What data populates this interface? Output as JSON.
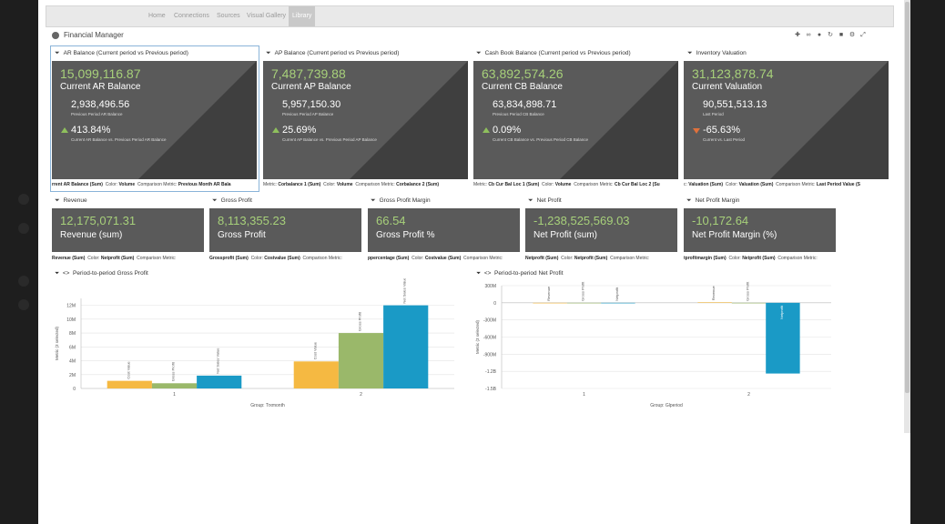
{
  "nav": {
    "items": [
      "Home",
      "Connections",
      "Sources",
      "Visual Gallery",
      "Library"
    ],
    "active_index": 4
  },
  "page_title": "Financial Manager",
  "toolbar_icons": [
    "add-widget-icon",
    "link-icon",
    "download-icon",
    "refresh-icon",
    "delete-icon",
    "settings-icon",
    "fullscreen-icon"
  ],
  "top_kpis": [
    {
      "header": "AR Balance (Current period vs Previous period)",
      "value": "15,099,116.87",
      "label": "Current AR Balance",
      "prev_value": "2,938,496.56",
      "prev_label": "Previous Period AR Balance",
      "pct": "413.84%",
      "pct_label": "Current AR Balance vs. Previous Period AR Balance",
      "trend": "up",
      "footer": [
        {
          "k": "",
          "v": "rrent AR Balance (Sum)"
        },
        {
          "k": "Color:",
          "v": "Volume"
        },
        {
          "k": "Comparison Metric:",
          "v": "Previous Month AR Bala"
        }
      ]
    },
    {
      "header": "AP Balance (Current period vs Previous period)",
      "value": "7,487,739.88",
      "label": "Current AP Balance",
      "prev_value": "5,957,150.30",
      "prev_label": "Previous Period AP Balance",
      "pct": "25.69%",
      "pct_label": "Current AP Balance vs. Previous Period AP Balance",
      "trend": "up",
      "footer": [
        {
          "k": "Metric:",
          "v": "Corbalance 1 (Sum)"
        },
        {
          "k": "Color:",
          "v": "Volume"
        },
        {
          "k": "Comparison Metric:",
          "v": "Corbalance 2 (Sum)"
        }
      ]
    },
    {
      "header": "Cash Book Balance (Current period vs Previous period)",
      "value": "63,892,574.26",
      "label": "Current CB Balance",
      "prev_value": "63,834,898.71",
      "prev_label": "Previous Period CB Balance",
      "pct": "0.09%",
      "pct_label": "Current CB Balance vs. Previous Period CB Balance",
      "trend": "up",
      "footer": [
        {
          "k": "Metric:",
          "v": "Cb Cur Bal Loc 1 (Sum)"
        },
        {
          "k": "Color:",
          "v": "Volume"
        },
        {
          "k": "Comparison Metric:",
          "v": "Cb Cur Bal Loc 2 (Su"
        }
      ]
    },
    {
      "header": "Inventory Valuation",
      "value": "31,123,878.74",
      "label": "Current Valuation",
      "prev_value": "90,551,513.13",
      "prev_label": "Last Period",
      "pct": "-65.63%",
      "pct_label": "Current vs. Last Period",
      "trend": "down",
      "footer": [
        {
          "k": "c:",
          "v": "Valuation (Sum)"
        },
        {
          "k": "Color:",
          "v": "Valuation (Sum)"
        },
        {
          "k": "Comparison Metric:",
          "v": "Last Period Value (S"
        }
      ]
    }
  ],
  "second_kpis": [
    {
      "header": "Revenue",
      "value": "12,175,071.31",
      "label": "Revenue (sum)",
      "footer": [
        {
          "k": "",
          "v": "Revenue (Sum)"
        },
        {
          "k": "Color:",
          "v": "Netprofit (Sum)"
        },
        {
          "k": "Comparison Metric:",
          "v": ""
        }
      ]
    },
    {
      "header": "Gross Profit",
      "value": "8,113,355.23",
      "label": "Gross Profit",
      "footer": [
        {
          "k": "",
          "v": "Grossprofit (Sum)"
        },
        {
          "k": "Color:",
          "v": "Costvalue (Sum)"
        },
        {
          "k": "Comparison Metric:",
          "v": ""
        }
      ]
    },
    {
      "header": "Gross Profit Margin",
      "value": "66.54",
      "label": "Gross Profit %",
      "footer": [
        {
          "k": "",
          "v": "ppercentage (Sum)"
        },
        {
          "k": "Color:",
          "v": "Costvalue (Sum)"
        },
        {
          "k": "Comparison Metric:",
          "v": ""
        }
      ]
    },
    {
      "header": "Net Profit",
      "value": "-1,238,525,569.03",
      "label": "Net Profit (sum)",
      "footer": [
        {
          "k": "",
          "v": "Netprofit (Sum)"
        },
        {
          "k": "Color:",
          "v": "Netprofit (Sum)"
        },
        {
          "k": "Comparison Metric:",
          "v": ""
        }
      ]
    },
    {
      "header": "Net Profit Margin",
      "value": "-10,172.64",
      "label": "Net Profit Margin (%)",
      "footer": [
        {
          "k": "",
          "v": "tprofitmargin (Sum)"
        },
        {
          "k": "Color:",
          "v": "Netprofit (Sum)"
        },
        {
          "k": "Comparison Metric:",
          "v": ""
        }
      ]
    }
  ],
  "colors": {
    "kpi_bg": "#5a5a5a",
    "value_green": "#a7d07a",
    "bar_yellow": "#f5b942",
    "bar_green": "#9ab86a",
    "bar_blue": "#1a9ac6"
  },
  "chart_data": [
    {
      "type": "bar",
      "title": "Period-to-period Gross Profit",
      "xlabel": "Group: Trxmonth",
      "ylabel": "Metric (3 selected)",
      "categories": [
        "1",
        "2"
      ],
      "yticks": [
        "0",
        "2M",
        "4M",
        "6M",
        "8M",
        "10M",
        "12M"
      ],
      "ylim": [
        0,
        13000000
      ],
      "grid": true,
      "series": [
        {
          "name": "Cost Value",
          "values": [
            1100000,
            3900000
          ],
          "color": "#f5b942"
        },
        {
          "name": "Gross Profit",
          "values": [
            750000,
            8000000
          ],
          "color": "#9ab86a"
        },
        {
          "name": "Net Sales Value",
          "values": [
            1850000,
            12000000
          ],
          "color": "#1a9ac6"
        }
      ]
    },
    {
      "type": "bar",
      "title": "Period-to-period Net Profit",
      "xlabel": "Group: Glperiod",
      "ylabel": "Metric (3 selected)",
      "categories": [
        "1",
        "2"
      ],
      "yticks": [
        "300M",
        "0",
        "-300M",
        "-600M",
        "-900M",
        "-1.2B",
        "-1.5B"
      ],
      "ylim": [
        -1500000000,
        300000000
      ],
      "grid": true,
      "series": [
        {
          "name": "Revenue",
          "values": [
            0,
            9000000
          ],
          "color": "#f5b942"
        },
        {
          "name": "Gross Profit",
          "values": [
            0,
            0
          ],
          "color": "#9ab86a"
        },
        {
          "name": "Netprofit",
          "values": [
            0,
            -1238525569
          ],
          "color": "#1a9ac6"
        }
      ]
    }
  ]
}
